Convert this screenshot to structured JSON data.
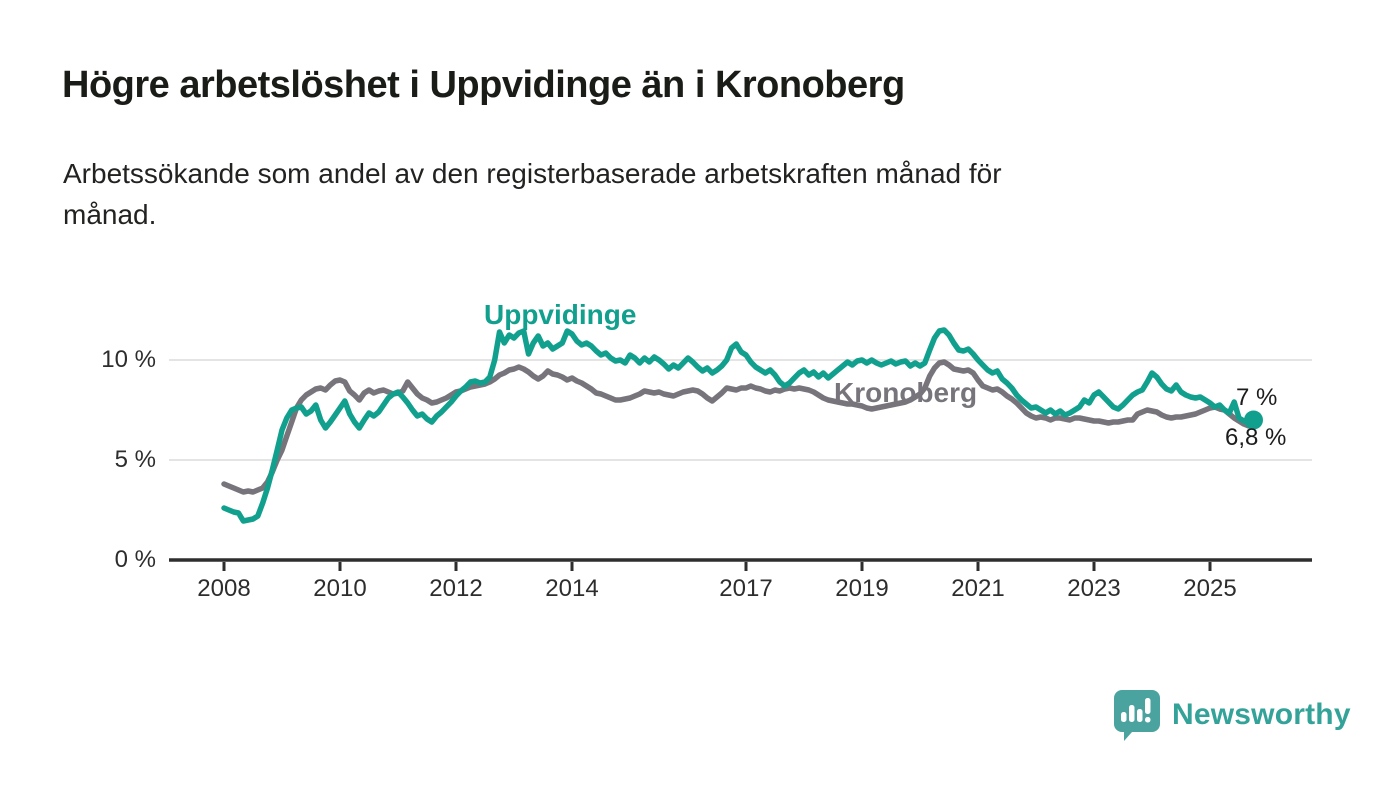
{
  "header": {
    "title": "Högre arbetslöshet i Uppvidinge än i Kronoberg",
    "subtitle_line1": "Arbetssökande som andel av den registerbaserade arbetskraften månad för",
    "subtitle_line2": "månad."
  },
  "chart_data": {
    "type": "line",
    "title": "Högre arbetslöshet i Uppvidinge än i Kronoberg",
    "subtitle": "Arbetssökande som andel av den registerbaserade arbetskraften månad för månad.",
    "unit": "%",
    "legend_position": "inline-labels-on-lines",
    "grid": "horizontal-only",
    "colors": {
      "grid": "#dcdcdc",
      "axis": "#2e2e2e",
      "uppvidinge": "#12a08e",
      "kronoberg": "#77757b"
    },
    "x_axis": {
      "min": 2007.1,
      "max": 2026.8,
      "ticks": [
        2008,
        2010,
        2012,
        2014,
        2017,
        2019,
        2021,
        2023,
        2025
      ]
    },
    "y_axis": {
      "min": 0,
      "max": 12.4,
      "gridlines": [
        5,
        10
      ],
      "ticks": [
        {
          "value": 0,
          "label": "0 %"
        },
        {
          "value": 5,
          "label": "5 %"
        },
        {
          "value": 10,
          "label": "10 %"
        }
      ]
    },
    "series": [
      {
        "name": "Kronoberg",
        "color": "#77757b",
        "start_year": 2008,
        "points_per_year": 12,
        "end_label": "6,8 %",
        "end_value": 6.8,
        "end_dot": false,
        "values": [
          3.8,
          3.7,
          3.6,
          3.5,
          3.4,
          3.45,
          3.4,
          3.5,
          3.6,
          3.9,
          4.4,
          5.0,
          5.5,
          6.2,
          6.9,
          7.6,
          8.0,
          8.25,
          8.4,
          8.55,
          8.6,
          8.5,
          8.75,
          8.95,
          9.0,
          8.9,
          8.45,
          8.25,
          8.0,
          8.35,
          8.5,
          8.35,
          8.45,
          8.5,
          8.4,
          8.3,
          8.35,
          8.45,
          8.9,
          8.6,
          8.3,
          8.1,
          8.0,
          7.85,
          7.9,
          8.0,
          8.1,
          8.25,
          8.4,
          8.45,
          8.55,
          8.65,
          8.7,
          8.75,
          8.8,
          8.9,
          9.05,
          9.25,
          9.35,
          9.5,
          9.55,
          9.65,
          9.55,
          9.4,
          9.2,
          9.05,
          9.2,
          9.45,
          9.3,
          9.25,
          9.15,
          9.0,
          9.1,
          8.95,
          8.85,
          8.7,
          8.55,
          8.35,
          8.3,
          8.2,
          8.1,
          8.0,
          8.0,
          8.05,
          8.1,
          8.2,
          8.3,
          8.45,
          8.4,
          8.35,
          8.4,
          8.3,
          8.25,
          8.2,
          8.3,
          8.4,
          8.45,
          8.5,
          8.45,
          8.3,
          8.1,
          7.95,
          8.15,
          8.35,
          8.6,
          8.55,
          8.5,
          8.6,
          8.6,
          8.7,
          8.6,
          8.55,
          8.45,
          8.4,
          8.5,
          8.45,
          8.55,
          8.6,
          8.55,
          8.6,
          8.55,
          8.5,
          8.4,
          8.25,
          8.1,
          8.0,
          7.95,
          7.9,
          7.85,
          7.8,
          7.8,
          7.75,
          7.7,
          7.6,
          7.55,
          7.6,
          7.65,
          7.7,
          7.75,
          7.8,
          7.85,
          7.9,
          8.0,
          8.15,
          8.3,
          8.6,
          9.2,
          9.6,
          9.85,
          9.9,
          9.75,
          9.55,
          9.5,
          9.45,
          9.5,
          9.35,
          9.0,
          8.7,
          8.6,
          8.5,
          8.55,
          8.4,
          8.2,
          8.05,
          7.85,
          7.6,
          7.35,
          7.2,
          7.1,
          7.15,
          7.1,
          7.0,
          7.1,
          7.1,
          7.05,
          7.0,
          7.1,
          7.1,
          7.05,
          7.0,
          6.95,
          6.95,
          6.9,
          6.85,
          6.9,
          6.9,
          6.95,
          7.0,
          7.0,
          7.3,
          7.4,
          7.5,
          7.45,
          7.4,
          7.25,
          7.15,
          7.1,
          7.15,
          7.15,
          7.2,
          7.25,
          7.3,
          7.4,
          7.5,
          7.6,
          7.65,
          7.55,
          7.5,
          7.3,
          7.1,
          6.95,
          6.8,
          6.7,
          6.8
        ]
      },
      {
        "name": "Uppvidinge",
        "color": "#12a08e",
        "start_year": 2008,
        "points_per_year": 12,
        "end_label": "7 %",
        "end_value": 7.0,
        "end_dot": true,
        "values": [
          2.6,
          2.5,
          2.4,
          2.35,
          1.95,
          2.0,
          2.05,
          2.2,
          2.85,
          3.6,
          4.5,
          5.5,
          6.5,
          7.1,
          7.5,
          7.6,
          7.65,
          7.3,
          7.45,
          7.75,
          7.0,
          6.6,
          6.9,
          7.25,
          7.6,
          7.95,
          7.3,
          6.9,
          6.6,
          7.0,
          7.35,
          7.2,
          7.4,
          7.75,
          8.1,
          8.3,
          8.4,
          8.15,
          7.85,
          7.5,
          7.2,
          7.3,
          7.05,
          6.9,
          7.2,
          7.4,
          7.65,
          7.9,
          8.2,
          8.45,
          8.65,
          8.9,
          8.95,
          8.85,
          8.9,
          9.15,
          10.0,
          11.4,
          10.85,
          11.25,
          11.1,
          11.35,
          11.45,
          10.3,
          10.85,
          11.2,
          10.7,
          10.85,
          10.55,
          10.7,
          10.85,
          11.45,
          11.3,
          10.95,
          10.75,
          10.85,
          10.7,
          10.45,
          10.25,
          10.35,
          10.1,
          9.95,
          10.0,
          9.85,
          10.25,
          10.1,
          9.85,
          10.1,
          9.9,
          10.15,
          10.0,
          9.8,
          9.55,
          9.75,
          9.6,
          9.85,
          10.1,
          9.9,
          9.65,
          9.45,
          9.6,
          9.35,
          9.5,
          9.7,
          10.0,
          10.6,
          10.8,
          10.4,
          10.25,
          9.9,
          9.65,
          9.5,
          9.35,
          9.5,
          9.25,
          8.9,
          8.7,
          8.85,
          9.1,
          9.35,
          9.5,
          9.25,
          9.4,
          9.15,
          9.35,
          9.1,
          9.3,
          9.5,
          9.7,
          9.9,
          9.75,
          9.95,
          10.0,
          9.85,
          10.0,
          9.85,
          9.75,
          9.85,
          9.95,
          9.8,
          9.9,
          9.95,
          9.7,
          9.85,
          9.7,
          9.85,
          10.5,
          11.1,
          11.45,
          11.5,
          11.25,
          10.85,
          10.5,
          10.45,
          10.55,
          10.3,
          10.0,
          9.75,
          9.5,
          9.35,
          9.45,
          9.05,
          8.85,
          8.6,
          8.25,
          8.0,
          7.8,
          7.6,
          7.65,
          7.5,
          7.35,
          7.5,
          7.3,
          7.45,
          7.25,
          7.35,
          7.5,
          7.65,
          8.0,
          7.85,
          8.25,
          8.4,
          8.15,
          7.9,
          7.65,
          7.55,
          7.75,
          8.0,
          8.25,
          8.4,
          8.5,
          8.9,
          9.35,
          9.15,
          8.8,
          8.55,
          8.45,
          8.75,
          8.4,
          8.25,
          8.15,
          8.1,
          8.15,
          8.0,
          7.85,
          7.65,
          7.75,
          7.5,
          7.35,
          7.9,
          7.1,
          6.95,
          6.85,
          7.0
        ]
      }
    ]
  },
  "footer": {
    "brand_name": "Newsworthy",
    "brand_icon_color": "#4aa39f",
    "brand_text_color": "#33a298"
  }
}
